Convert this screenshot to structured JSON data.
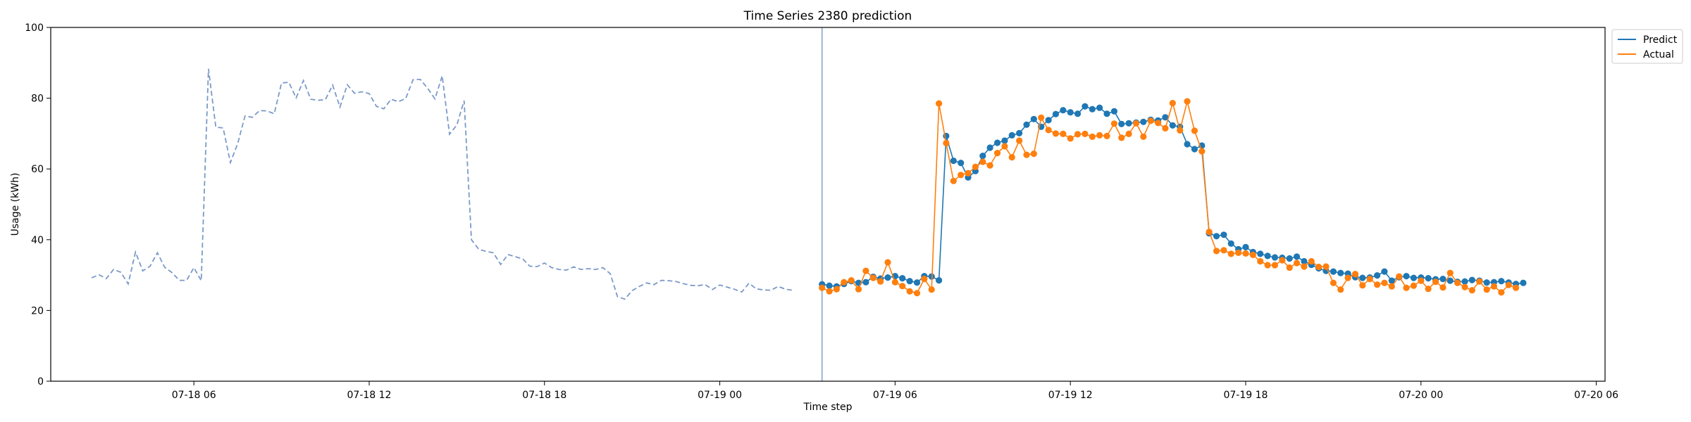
{
  "chart_data": {
    "type": "line",
    "title": "Time Series 2380 prediction",
    "xlabel": "Time step",
    "ylabel": "Usage (kWh)",
    "ylim": [
      0,
      100
    ],
    "y_ticks": [
      0,
      20,
      40,
      60,
      80,
      100
    ],
    "x_unit": "hours since 2024-07-18 00:00",
    "xlim_hours": [
      1.1,
      54.3
    ],
    "x_ticks": [
      {
        "label": "07-18 06",
        "hours": 6
      },
      {
        "label": "07-18 12",
        "hours": 12
      },
      {
        "label": "07-18 18",
        "hours": 18
      },
      {
        "label": "07-19 00",
        "hours": 24
      },
      {
        "label": "07-19 06",
        "hours": 30
      },
      {
        "label": "07-19 12",
        "hours": 36
      },
      {
        "label": "07-19 18",
        "hours": 42
      },
      {
        "label": "07-20 00",
        "hours": 48
      },
      {
        "label": "07-20 06",
        "hours": 54
      }
    ],
    "forecast_start_hours": 27.5,
    "history": {
      "start_hours": 2.5,
      "step_hours": 0.25,
      "color": "#7b9ac8",
      "values": [
        29.2,
        30.1,
        29.0,
        31.6,
        30.8,
        27.5,
        36.5,
        31.2,
        32.5,
        36.3,
        32.2,
        30.7,
        28.5,
        28.5,
        32.1,
        28.4,
        88.3,
        71.8,
        71.6,
        61.8,
        67.2,
        75.0,
        74.6,
        76.5,
        76.4,
        75.6,
        84.3,
        84.5,
        80.1,
        85.0,
        79.7,
        79.4,
        79.6,
        83.7,
        77.5,
        83.8,
        81.4,
        81.8,
        81.3,
        77.7,
        77.0,
        79.7,
        79.0,
        79.9,
        85.2,
        85.3,
        82.8,
        79.8,
        86.3,
        69.8,
        72.4,
        79.3,
        40.0,
        37.3,
        36.7,
        36.3,
        33.0,
        35.8,
        35.2,
        34.6,
        32.5,
        32.4,
        33.4,
        32.1,
        31.6,
        31.4,
        32.3,
        31.6,
        31.8,
        31.6,
        32.1,
        30.4,
        23.9,
        23.2,
        25.6,
        26.8,
        27.8,
        27.3,
        28.5,
        28.4,
        28.2,
        27.6,
        27.1,
        27.0,
        27.3,
        25.9,
        27.2,
        26.6,
        26.0,
        25.2,
        27.7,
        26.1,
        25.8,
        25.7,
        26.8,
        26.0,
        25.7
      ]
    },
    "series": [
      {
        "name": "Predict",
        "color": "#1f77b4",
        "start_hours": 27.5,
        "step_hours": 0.25,
        "values": [
          27.4,
          27.0,
          26.8,
          27.5,
          28.3,
          27.8,
          28.0,
          29.5,
          29.0,
          29.3,
          29.7,
          29.1,
          28.3,
          27.9,
          29.7,
          29.6,
          28.5,
          69.3,
          62.3,
          61.7,
          57.6,
          59.4,
          63.7,
          66.0,
          67.4,
          68.0,
          69.5,
          70.1,
          72.5,
          74.1,
          71.9,
          73.8,
          75.5,
          76.6,
          76.0,
          75.6,
          77.7,
          76.9,
          77.3,
          75.6,
          76.3,
          72.7,
          72.9,
          73.1,
          73.3,
          73.9,
          73.7,
          74.6,
          72.3,
          71.9,
          67.0,
          65.6,
          66.6,
          41.8,
          41.0,
          41.4,
          38.9,
          37.3,
          37.9,
          36.5,
          36.0,
          35.4,
          35.0,
          34.9,
          34.7,
          35.2,
          33.9,
          32.9,
          31.9,
          31.2,
          31.0,
          30.6,
          30.4,
          29.4,
          29.2,
          29.3,
          29.9,
          31.0,
          28.4,
          29.4,
          29.7,
          29.2,
          29.3,
          29.1,
          28.8,
          28.9,
          28.4,
          28.1,
          28.2,
          28.6,
          28.4,
          27.9,
          28.0,
          28.3,
          27.9,
          27.5,
          27.8
        ]
      },
      {
        "name": "Actual",
        "color": "#ff7f0e",
        "start_hours": 27.5,
        "step_hours": 0.25,
        "values": [
          26.4,
          25.4,
          26.0,
          28.0,
          28.5,
          26.0,
          31.2,
          29.2,
          28.2,
          33.6,
          28.0,
          26.9,
          25.4,
          24.9,
          28.9,
          25.9,
          78.5,
          67.3,
          56.6,
          58.3,
          58.8,
          60.6,
          62.0,
          61.0,
          64.5,
          66.4,
          63.3,
          68.0,
          64.0,
          64.3,
          74.5,
          71.0,
          70.0,
          69.9,
          68.6,
          69.8,
          69.9,
          69.1,
          69.5,
          69.3,
          72.8,
          68.8,
          69.9,
          72.9,
          69.1,
          73.6,
          73.0,
          71.5,
          78.6,
          70.9,
          79.1,
          70.8,
          65.0,
          42.2,
          36.8,
          37.0,
          36.0,
          36.3,
          36.1,
          35.7,
          33.9,
          32.8,
          32.8,
          34.2,
          32.1,
          33.4,
          32.4,
          33.9,
          32.3,
          32.4,
          27.8,
          25.9,
          29.2,
          30.3,
          27.1,
          28.9,
          27.3,
          27.8,
          26.8,
          29.6,
          26.4,
          27.0,
          28.4,
          26.1,
          28.1,
          26.5,
          30.6,
          27.8,
          26.6,
          25.7,
          28.2,
          25.9,
          26.8,
          25.1,
          27.2,
          26.4
        ]
      }
    ],
    "legend_position": "top-right",
    "grid": false
  }
}
